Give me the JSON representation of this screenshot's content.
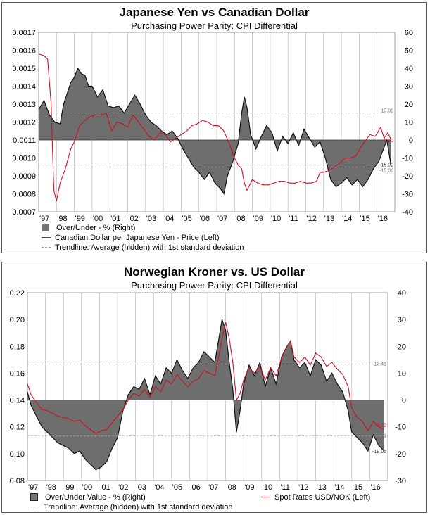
{
  "colors": {
    "area_fill": "#6e6e6e",
    "area_stroke": "#111111",
    "line": "#cc1122",
    "gridline": "#bdbdbd",
    "trendline": "#aaaaaa",
    "axis_text": "#000000"
  },
  "charts": [
    {
      "title": "Japanese Yen vs Canadian Dollar",
      "subtitle": "Purchasing Power Parity: CPI Differential",
      "legend": {
        "area": "Over/Under - % (Right)",
        "line": "Canadian Dollar per Japanese Yen - Price (Left)",
        "trend": "Trendline: Average (hidden) with 1st standard deviation"
      },
      "annotations": [
        "15.06",
        "0.00",
        "-15.00",
        "-15.06"
      ]
    },
    {
      "title": "Norwegian Kroner vs. US Dollar",
      "subtitle": "Purchasing Power Parity: CPI Differential",
      "legend": {
        "area": "Over/Under Value - % (Right)",
        "line": "Spot Rates USD/NOK (Left)",
        "trend": "Trendline: Average (hidden) with 1st standard deviation"
      },
      "annotations": [
        "13.41",
        "-9.12",
        "-13.41",
        "-19.05"
      ]
    }
  ],
  "chart_data": [
    {
      "type": "area",
      "title": "Japanese Yen vs Canadian Dollar",
      "subtitle": "Purchasing Power Parity: CPI Differential",
      "x_ticks": [
        "'97",
        "'98",
        "'99",
        "'00",
        "'01",
        "'02",
        "'03",
        "'04",
        "'05",
        "'06",
        "'07",
        "'08",
        "'09",
        "'10",
        "'11",
        "'12",
        "'13",
        "'14",
        "'15",
        "'16"
      ],
      "xlim": [
        1997.0,
        2017.0
      ],
      "y_left": {
        "min": 0.0007,
        "max": 0.0017,
        "ticks": [
          "0.0017",
          "0.0016",
          "0.0015",
          "0.0014",
          "0.0013",
          "0.0012",
          "0.0011",
          "0.0010",
          "0.0009",
          "0.0008",
          "0.0007"
        ]
      },
      "y_right": {
        "min": -40,
        "max": 60,
        "ticks": [
          "60",
          "50",
          "40",
          "30",
          "20",
          "10",
          "0",
          "-10",
          "-20",
          "-30",
          "-40"
        ]
      },
      "baseline_right": 0,
      "trendlines_right": [
        15.06,
        -15.06
      ],
      "series": [
        {
          "name": "Over/Under - % (Right)",
          "axis": "right",
          "x": [
            1997.0,
            1997.3,
            1997.6,
            1997.9,
            1998.2,
            1998.4,
            1998.6,
            1998.8,
            1999.0,
            1999.2,
            1999.4,
            1999.6,
            1999.8,
            2000.0,
            2000.3,
            2000.6,
            2000.9,
            2001.2,
            2001.5,
            2001.8,
            2002.1,
            2002.4,
            2002.7,
            2003.0,
            2003.3,
            2003.6,
            2003.9,
            2004.2,
            2004.5,
            2004.8,
            2005.1,
            2005.4,
            2005.7,
            2006.0,
            2006.3,
            2006.6,
            2006.9,
            2007.2,
            2007.4,
            2007.6,
            2007.9,
            2008.2,
            2008.4,
            2008.55,
            2008.7,
            2008.9,
            2009.2,
            2009.5,
            2009.8,
            2010.1,
            2010.4,
            2010.7,
            2011.0,
            2011.3,
            2011.6,
            2011.9,
            2012.2,
            2012.5,
            2012.8,
            2013.1,
            2013.4,
            2013.7,
            2014.0,
            2014.3,
            2014.6,
            2014.9,
            2015.2,
            2015.5,
            2015.8,
            2016.1,
            2016.4,
            2016.55,
            2016.7,
            2016.8
          ],
          "values": [
            17,
            22,
            14,
            10,
            9,
            20,
            26,
            32,
            35,
            40,
            37,
            36,
            30,
            30,
            24,
            28,
            19,
            18,
            19,
            15,
            20,
            25,
            20,
            14,
            10,
            8,
            5,
            3,
            5,
            1,
            -5,
            -10,
            -15,
            -18,
            -22,
            -18,
            -24,
            -27,
            -30,
            -20,
            -12,
            -2,
            15,
            24,
            18,
            3,
            -5,
            2,
            8,
            4,
            -6,
            2,
            -2,
            4,
            -3,
            6,
            1,
            -4,
            -1,
            -10,
            -22,
            -26,
            -24,
            -21,
            -25,
            -22,
            -26,
            -22,
            -16,
            -12,
            -4,
            0,
            -9,
            -15
          ]
        },
        {
          "name": "Canadian Dollar per Japanese Yen - Price (Left)",
          "axis": "left",
          "x": [
            1997.0,
            1997.3,
            1997.5,
            1997.7,
            1997.85,
            1998.0,
            1998.2,
            1998.5,
            1998.8,
            1999.0,
            1999.3,
            1999.6,
            1999.9,
            2000.2,
            2000.5,
            2000.8,
            2001.1,
            2001.4,
            2001.7,
            2002.0,
            2002.3,
            2002.6,
            2002.9,
            2003.2,
            2003.5,
            2003.8,
            2004.1,
            2004.4,
            2004.7,
            2005.0,
            2005.3,
            2005.6,
            2005.9,
            2006.2,
            2006.5,
            2006.8,
            2007.1,
            2007.4,
            2007.7,
            2008.0,
            2008.2,
            2008.4,
            2008.55,
            2008.7,
            2009.0,
            2009.3,
            2009.6,
            2009.9,
            2010.2,
            2010.5,
            2010.8,
            2011.1,
            2011.4,
            2011.7,
            2012.0,
            2012.3,
            2012.6,
            2012.8,
            2013.0,
            2013.3,
            2013.6,
            2013.9,
            2014.2,
            2014.5,
            2014.8,
            2015.1,
            2015.3,
            2015.6,
            2015.9,
            2016.2,
            2016.4,
            2016.6,
            2016.8
          ],
          "values": [
            0.00158,
            0.00157,
            0.00155,
            0.0013,
            0.00082,
            0.00076,
            0.00086,
            0.00094,
            0.00105,
            0.00109,
            0.00118,
            0.00121,
            0.00123,
            0.00124,
            0.00124,
            0.00125,
            0.00115,
            0.0012,
            0.00119,
            0.00117,
            0.00124,
            0.0012,
            0.00116,
            0.00112,
            0.0011,
            0.00114,
            0.00113,
            0.00109,
            0.00111,
            0.00113,
            0.00115,
            0.00118,
            0.00119,
            0.00121,
            0.0012,
            0.00118,
            0.00118,
            0.00115,
            0.00108,
            0.001,
            0.00096,
            0.00094,
            0.00086,
            0.00082,
            0.00088,
            0.00086,
            0.00085,
            0.00085,
            0.00086,
            0.00087,
            0.00087,
            0.00086,
            0.00086,
            0.00087,
            0.00086,
            0.00086,
            0.00087,
            0.00092,
            0.00092,
            0.00093,
            0.00095,
            0.00097,
            0.001,
            0.001,
            0.00101,
            0.00106,
            0.00109,
            0.00113,
            0.00112,
            0.00117,
            0.00111,
            0.00114,
            0.0011
          ]
        }
      ]
    },
    {
      "type": "area",
      "title": "Norwegian Kroner vs. US Dollar",
      "subtitle": "Purchasing Power Parity: CPI Differential",
      "x_ticks": [
        "'97",
        "'98",
        "'99",
        "'00",
        "'01",
        "'02",
        "'03",
        "'04",
        "'05",
        "'06",
        "'07",
        "'08",
        "'09",
        "'10",
        "'11",
        "'12",
        "'13",
        "'14",
        "'15",
        "'16"
      ],
      "xlim": [
        1997.0,
        2017.0
      ],
      "y_left": {
        "min": 0.08,
        "max": 0.22,
        "ticks": [
          "0.22",
          "0.20",
          "0.18",
          "0.16",
          "0.14",
          "0.12",
          "0.10",
          "0.08"
        ]
      },
      "y_right": {
        "min": -30,
        "max": 40,
        "ticks": [
          "40",
          "30",
          "20",
          "10",
          "0",
          "-10",
          "-20",
          "-30"
        ]
      },
      "baseline_right": 0,
      "trendlines_right": [
        13.41,
        -13.41
      ],
      "series": [
        {
          "name": "Over/Under Value - % (Right)",
          "axis": "right",
          "x": [
            1997.0,
            1997.2,
            1997.5,
            1997.8,
            1998.1,
            1998.4,
            1998.7,
            1999.0,
            1999.3,
            1999.6,
            1999.9,
            2000.2,
            2000.5,
            2000.8,
            2001.1,
            2001.4,
            2001.7,
            2002.0,
            2002.3,
            2002.6,
            2002.9,
            2003.2,
            2003.5,
            2003.8,
            2004.1,
            2004.4,
            2004.7,
            2005.0,
            2005.3,
            2005.6,
            2005.9,
            2006.2,
            2006.5,
            2006.8,
            2007.1,
            2007.4,
            2007.6,
            2007.8,
            2008.0,
            2008.2,
            2008.4,
            2008.6,
            2008.8,
            2009.0,
            2009.3,
            2009.6,
            2009.9,
            2010.2,
            2010.5,
            2010.8,
            2011.1,
            2011.4,
            2011.6,
            2011.8,
            2012.1,
            2012.4,
            2012.7,
            2013.0,
            2013.3,
            2013.6,
            2013.9,
            2014.2,
            2014.5,
            2014.8,
            2015.0,
            2015.3,
            2015.6,
            2015.9,
            2016.2,
            2016.5,
            2016.8
          ],
          "values": [
            3,
            -2,
            -6,
            -10,
            -12,
            -14,
            -16,
            -17,
            -18,
            -20,
            -19,
            -22,
            -24,
            -26,
            -25,
            -23,
            -18,
            -14,
            -4,
            2,
            5,
            4,
            8,
            2,
            9,
            6,
            12,
            10,
            15,
            11,
            8,
            12,
            14,
            18,
            16,
            14,
            22,
            30,
            26,
            14,
            4,
            -12,
            -4,
            6,
            13,
            9,
            14,
            5,
            12,
            6,
            16,
            20,
            22,
            15,
            12,
            14,
            9,
            15,
            13,
            7,
            10,
            6,
            3,
            -4,
            -12,
            -14,
            -16,
            -19,
            -13,
            -17,
            -19
          ]
        },
        {
          "name": "Spot Rates USD/NOK (Left)",
          "axis": "left",
          "x": [
            1997.0,
            1997.2,
            1997.5,
            1997.8,
            1998.1,
            1998.4,
            1998.7,
            1999.0,
            1999.3,
            1999.6,
            1999.9,
            2000.2,
            2000.5,
            2000.8,
            2001.1,
            2001.4,
            2001.7,
            2002.0,
            2002.3,
            2002.6,
            2002.9,
            2003.2,
            2003.5,
            2003.8,
            2004.1,
            2004.4,
            2004.7,
            2005.0,
            2005.3,
            2005.6,
            2005.9,
            2006.2,
            2006.5,
            2006.8,
            2007.1,
            2007.4,
            2007.6,
            2007.8,
            2008.0,
            2008.2,
            2008.4,
            2008.6,
            2008.8,
            2009.0,
            2009.3,
            2009.6,
            2009.9,
            2010.2,
            2010.5,
            2010.8,
            2011.1,
            2011.4,
            2011.6,
            2011.8,
            2012.1,
            2012.4,
            2012.7,
            2013.0,
            2013.3,
            2013.6,
            2013.9,
            2014.2,
            2014.5,
            2014.8,
            2015.0,
            2015.3,
            2015.6,
            2015.9,
            2016.2,
            2016.5,
            2016.8
          ],
          "values": [
            0.152,
            0.144,
            0.138,
            0.133,
            0.132,
            0.13,
            0.128,
            0.127,
            0.126,
            0.124,
            0.125,
            0.121,
            0.118,
            0.115,
            0.117,
            0.118,
            0.123,
            0.128,
            0.133,
            0.14,
            0.145,
            0.143,
            0.148,
            0.142,
            0.15,
            0.146,
            0.155,
            0.152,
            0.159,
            0.154,
            0.15,
            0.154,
            0.156,
            0.162,
            0.16,
            0.158,
            0.171,
            0.186,
            0.198,
            0.186,
            0.168,
            0.14,
            0.145,
            0.155,
            0.164,
            0.16,
            0.165,
            0.155,
            0.164,
            0.158,
            0.171,
            0.18,
            0.184,
            0.172,
            0.168,
            0.172,
            0.166,
            0.175,
            0.172,
            0.165,
            0.168,
            0.163,
            0.159,
            0.15,
            0.134,
            0.127,
            0.124,
            0.117,
            0.124,
            0.12,
            0.118
          ]
        }
      ]
    }
  ]
}
